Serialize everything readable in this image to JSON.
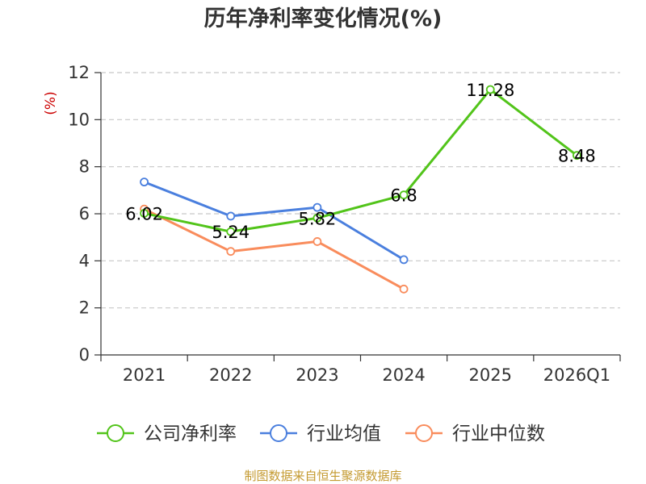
{
  "chart_data": {
    "type": "line",
    "title": "历年净利率变化情况(%)",
    "ylabel": "(%)",
    "xlabel": "",
    "categories": [
      "2021",
      "2022",
      "2023",
      "2024",
      "2025",
      "2026Q1"
    ],
    "ylim": [
      0,
      12
    ],
    "yticks": [
      0,
      2,
      4,
      6,
      8,
      10,
      12
    ],
    "grid": true,
    "legend_position": "bottom",
    "series": [
      {
        "name": "公司净利率",
        "color": "#52c41a",
        "values": [
          6.02,
          5.24,
          5.82,
          6.8,
          11.28,
          8.48
        ],
        "labels": [
          "6.02",
          "5.24",
          "5.82",
          "6.8",
          "11.28",
          "8.48"
        ]
      },
      {
        "name": "行业均值",
        "color": "#4a7fde",
        "values": [
          7.35,
          5.9,
          6.27,
          4.05,
          null,
          null
        ]
      },
      {
        "name": "行业中位数",
        "color": "#f98c5c",
        "values": [
          6.2,
          4.4,
          4.82,
          2.8,
          null,
          null
        ]
      }
    ]
  },
  "source": "制图数据来自恒生聚源数据库"
}
